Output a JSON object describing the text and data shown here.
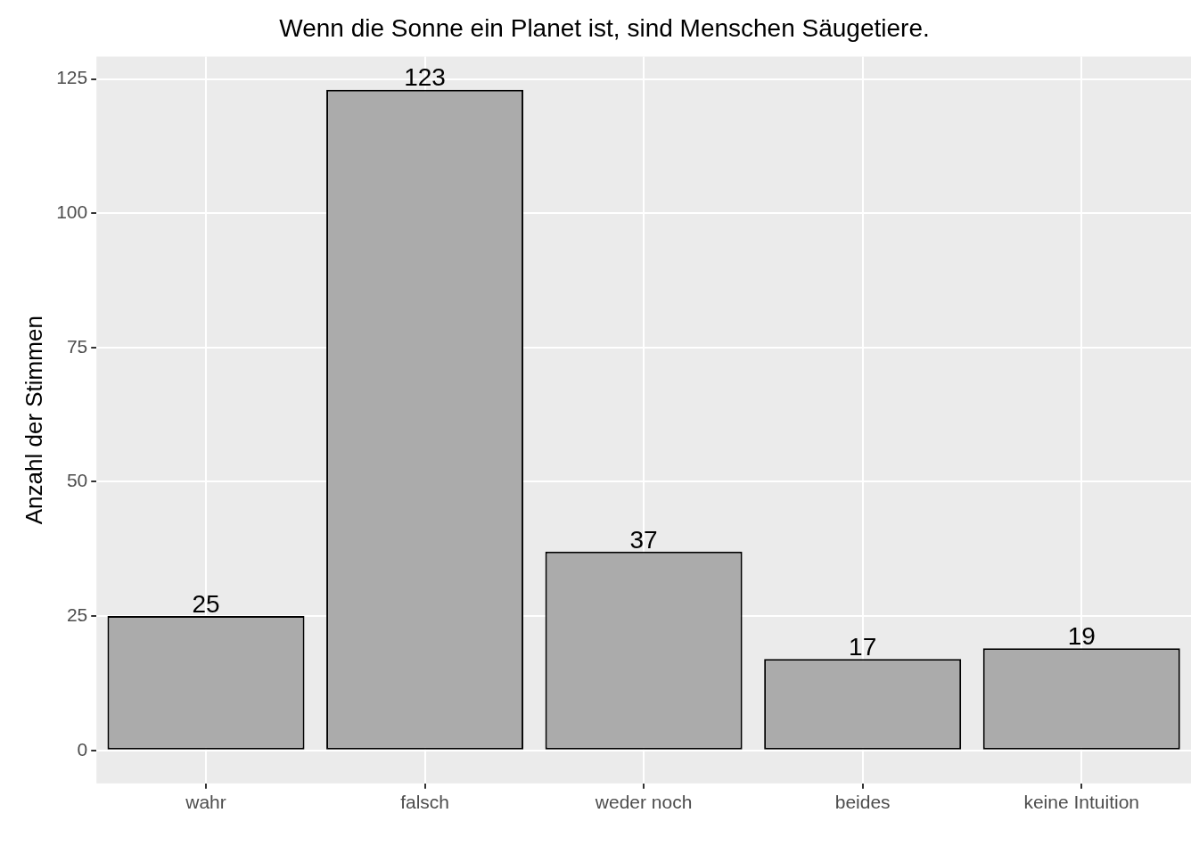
{
  "chart_data": {
    "type": "bar",
    "title": "Wenn die Sonne ein Planet ist, sind Menschen Säugetiere.",
    "ylabel": "Anzahl der Stimmen",
    "categories": [
      "wahr",
      "falsch",
      "weder noch",
      "beides",
      "keine Intuition"
    ],
    "values": [
      25,
      123,
      37,
      17,
      19
    ],
    "color": "#ababab",
    "ylim": [
      -6.15,
      129.15
    ],
    "yticks": [
      0,
      25,
      50,
      75,
      100,
      125
    ],
    "grid": true,
    "data_labels": true
  }
}
